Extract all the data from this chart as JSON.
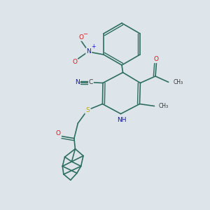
{
  "background_color": "#dde5ea",
  "bond_color": "#2d6e60",
  "bond_width": 1.2,
  "atom_colors": {
    "N": "#1111cc",
    "O": "#dd1111",
    "S": "#bbaa00",
    "C": "#222222"
  },
  "figsize": [
    3.0,
    3.0
  ],
  "dpi": 100,
  "xlim": [
    0,
    10
  ],
  "ylim": [
    0,
    10
  ]
}
